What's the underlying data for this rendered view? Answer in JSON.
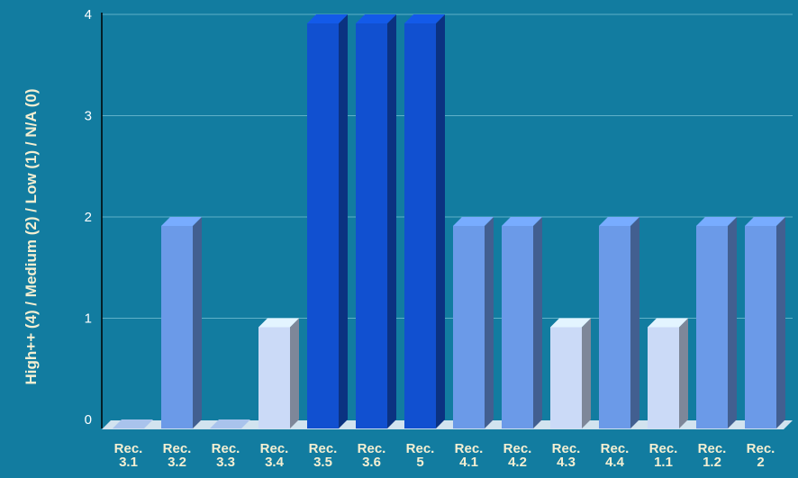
{
  "chart_data": {
    "type": "bar",
    "ylabel": "High++ (4) / Medium (2) /  Low (1) / N/A (0)",
    "xlabel": "",
    "ylim": [
      0,
      4
    ],
    "yticks": [
      0,
      1,
      2,
      3,
      4
    ],
    "grid": true,
    "style": "3d",
    "categories": [
      [
        "Rec.",
        "3.1"
      ],
      [
        "Rec.",
        "3.2"
      ],
      [
        "Rec.",
        "3.3"
      ],
      [
        "Rec.",
        "3.4"
      ],
      [
        "Rec.",
        "3.5"
      ],
      [
        "Rec.",
        "3.6"
      ],
      [
        "Rec.",
        "5"
      ],
      [
        "Rec.",
        "4.1"
      ],
      [
        "Rec.",
        "4.2"
      ],
      [
        "Rec.",
        "4.3"
      ],
      [
        "Rec.",
        "4.4"
      ],
      [
        "Rec.",
        "1.1"
      ],
      [
        "Rec.",
        "1.2"
      ],
      [
        "Rec.",
        "2"
      ]
    ],
    "values": [
      0,
      2,
      0,
      1,
      4,
      4,
      4,
      2,
      2,
      1,
      2,
      1,
      2,
      2
    ],
    "colors": {
      "background": "#127ca0",
      "high": "#1150d0",
      "medium": "#6b9ae8",
      "low": "#cbdaf7",
      "gridline": "#5fb0c8",
      "axis": "#000000",
      "tick_label": "#ffffff",
      "category_label": "#f4efd2",
      "ylabel": "#f4efd2"
    }
  }
}
